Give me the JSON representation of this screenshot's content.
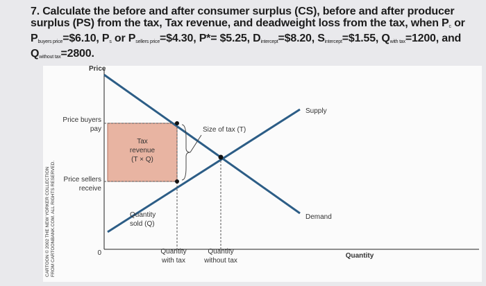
{
  "question": {
    "segments": [
      {
        "text": "7. Calculate the before and after consumer surplus (CS), before and after producer surplus (PS) from the tax, Tax revenue, and deadweight loss from the tax, when P"
      },
      {
        "sub": "c"
      },
      {
        "text": " or P"
      },
      {
        "sub": "buyers price"
      },
      {
        "text": "=$6.10, P"
      },
      {
        "sub": "s"
      },
      {
        "text": " or P"
      },
      {
        "sub": "sellers price"
      },
      {
        "text": "=$4.30, P*= $5.25, D"
      },
      {
        "sub": "intercept"
      },
      {
        "text": "=$8.20, S"
      },
      {
        "sub": "intercept"
      },
      {
        "text": "=$1.55, Q"
      },
      {
        "sub": "with tax"
      },
      {
        "text": "=1200, and Q"
      },
      {
        "sub": "without tax"
      },
      {
        "text": "=2800."
      }
    ]
  },
  "diagram": {
    "y_axis": "Price",
    "x_axis": "Quantity",
    "origin": "0",
    "price_buyers_pay": [
      "Price buyers",
      "pay"
    ],
    "price_sellers_receive": [
      "Price sellers",
      "receive"
    ],
    "tax_revenue": [
      "Tax",
      "revenue",
      "(T × Q)"
    ],
    "size_of_tax": "Size of tax (T)",
    "supply": "Supply",
    "demand": "Demand",
    "quantity_sold": [
      "Quantity",
      "sold (Q)"
    ],
    "quantity_with_tax": [
      "Quantity",
      "with tax"
    ],
    "quantity_without_tax": [
      "Quantity",
      "without tax"
    ],
    "credit": [
      "CARTOON © 2002 THE NEW YORKER COLLECTION",
      "FROM CARTOONBANK.COM. ALL RIGHTS RESERVED."
    ]
  }
}
